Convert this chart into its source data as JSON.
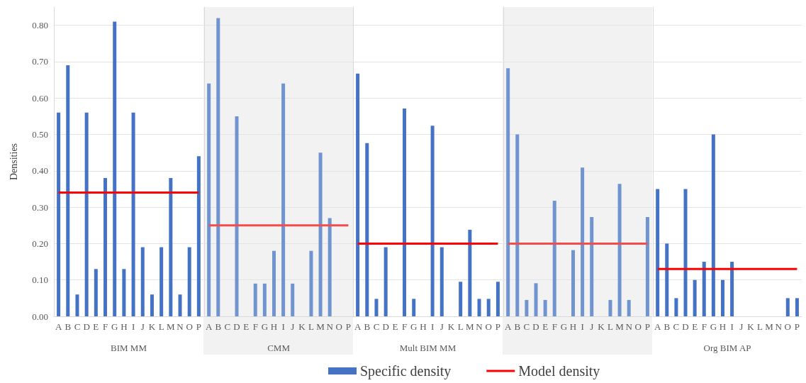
{
  "chart_data": [
    {
      "type": "bar",
      "xlabel": "BIM MM",
      "ylabel": "Densities",
      "categories": [
        "A",
        "B",
        "C",
        "D",
        "E",
        "F",
        "G",
        "H",
        "I",
        "J",
        "K",
        "L",
        "M",
        "N",
        "O",
        "P"
      ],
      "series": [
        {
          "color": "#4472c4",
          "values": [
            0.56,
            0.69,
            0.06,
            0.56,
            0.13,
            0.38,
            0.81,
            0.13,
            0.56,
            0.19,
            0.06,
            0.19,
            0.38,
            0.06,
            0.19,
            0.44
          ]
        },
        {
          "type": "line",
          "color": "#ff0000",
          "values": [
            0.34,
            0.34,
            0.34,
            0.34,
            0.34,
            0.34,
            0.34,
            0.34,
            0.34,
            0.34,
            0.34,
            0.34,
            0.34,
            0.34,
            0.34,
            0.34
          ]
        }
      ],
      "ylim": [
        0,
        0.85
      ],
      "yticks": [
        {
          "value": 0,
          "label": "0.00"
        },
        {
          "value": 0.1,
          "label": "0.10"
        },
        {
          "value": 0.2,
          "label": "0.20"
        },
        {
          "value": 0.3,
          "label": "0.30"
        },
        {
          "value": 0.4,
          "label": "0.40"
        },
        {
          "value": 0.5,
          "label": "0.50"
        },
        {
          "value": 0.6,
          "label": "0.60"
        },
        {
          "value": 0.7,
          "label": "0.70"
        },
        {
          "value": 0.8,
          "label": "0.80"
        }
      ],
      "grid": "y",
      "marker": "none",
      "line_style": "solid",
      "legend": false
    },
    {
      "type": "bar",
      "xlabel": "CMM",
      "categories": [
        "A",
        "B",
        "C",
        "D",
        "E",
        "F",
        "G",
        "H",
        "I",
        "J",
        "K",
        "L",
        "M",
        "N",
        "O",
        "P"
      ],
      "series": [
        {
          "color": "#7094d0",
          "values": [
            0.64,
            0.82,
            0,
            0.55,
            0,
            0.09,
            0.09,
            0.18,
            0.64,
            0.09,
            0,
            0.18,
            0.45,
            0.27,
            0,
            0
          ]
        },
        {
          "type": "line",
          "color": "#f24c4c",
          "values": [
            0.25,
            0.25,
            0.25,
            0.25,
            0.25,
            0.25,
            0.25,
            0.25,
            0.25,
            0.25,
            0.25,
            0.25,
            0.25,
            0.25,
            0.25,
            0.25
          ]
        }
      ],
      "ylim": [
        0,
        0.85
      ],
      "yticks": [
        0,
        0.1,
        0.2,
        0.3,
        0.4,
        0.5,
        0.6,
        0.7,
        0.8
      ],
      "tick_labels": "x",
      "grid": "y",
      "marker": "none",
      "line_style": "solid",
      "legend": false,
      "bands": [
        {
          "axis": "x",
          "from": "A",
          "to": "P",
          "color": "#f2f2f2"
        }
      ]
    },
    {
      "type": "bar",
      "xlabel": "Mult BIM MM",
      "categories": [
        "A",
        "B",
        "C",
        "D",
        "E",
        "F",
        "G",
        "H",
        "I",
        "J",
        "K",
        "L",
        "M",
        "N",
        "O",
        "P"
      ],
      "series": [
        {
          "name": "Specific density",
          "color": "#4472c4",
          "values": [
            0.667,
            0.476,
            0.048,
            0.19,
            0,
            0.571,
            0.048,
            0,
            0.524,
            0.19,
            0,
            0.095,
            0.238,
            0.048,
            0.048,
            0.095
          ]
        },
        {
          "type": "line",
          "name": "Model density",
          "color": "#ff0000",
          "values": [
            0.2,
            0.2,
            0.2,
            0.2,
            0.2,
            0.2,
            0.2,
            0.2,
            0.2,
            0.2,
            0.2,
            0.2,
            0.2,
            0.2,
            0.2,
            0.2
          ]
        }
      ],
      "ylim": [
        0,
        0.85
      ],
      "yticks": [
        0,
        0.1,
        0.2,
        0.3,
        0.4,
        0.5,
        0.6,
        0.7,
        0.8
      ],
      "tick_labels": "x",
      "grid": "y",
      "marker": "none",
      "line_style": "solid",
      "legend": "bottom"
    },
    {
      "type": "bar",
      "categories": [
        "A",
        "B",
        "C",
        "D",
        "E",
        "F",
        "G",
        "H",
        "I",
        "J",
        "K",
        "L",
        "M",
        "N",
        "O",
        "P"
      ],
      "series": [
        {
          "color": "#7094d0",
          "values": [
            0.682,
            0.5,
            0.045,
            0.091,
            0.045,
            0.318,
            0,
            0.182,
            0.409,
            0.273,
            0,
            0.045,
            0.364,
            0.045,
            0,
            0.273
          ]
        },
        {
          "type": "line",
          "color": "#f24c4c",
          "values": [
            0.2,
            0.2,
            0.2,
            0.2,
            0.2,
            0.2,
            0.2,
            0.2,
            0.2,
            0.2,
            0.2,
            0.2,
            0.2,
            0.2,
            0.2,
            0.2
          ]
        }
      ],
      "ylim": [
        0,
        0.85
      ],
      "yticks": [
        0,
        0.1,
        0.2,
        0.3,
        0.4,
        0.5,
        0.6,
        0.7,
        0.8
      ],
      "tick_labels": "x",
      "grid": "y",
      "marker": "none",
      "line_style": "solid",
      "legend": false,
      "bands": [
        {
          "axis": "x",
          "from": "A",
          "to": "P",
          "color": "#f2f2f2"
        }
      ]
    },
    {
      "type": "bar",
      "xlabel": "Org BIM AP",
      "categories": [
        "A",
        "B",
        "C",
        "D",
        "E",
        "F",
        "G",
        "H",
        "I",
        "J",
        "K",
        "L",
        "M",
        "N",
        "O",
        "P"
      ],
      "series": [
        {
          "color": "#4472c4",
          "values": [
            0.35,
            0.2,
            0.05,
            0.35,
            0.1,
            0.15,
            0.5,
            0.1,
            0.15,
            0,
            0,
            0,
            0,
            0,
            0.05,
            0.05
          ]
        },
        {
          "type": "line",
          "color": "#ff0000",
          "values": [
            0.13,
            0.13,
            0.13,
            0.13,
            0.13,
            0.13,
            0.13,
            0.13,
            0.13,
            0.13,
            0.13,
            0.13,
            0.13,
            0.13,
            0.13,
            0.13
          ]
        }
      ],
      "ylim": [
        0,
        0.85
      ],
      "yticks": [
        0,
        0.1,
        0.2,
        0.3,
        0.4,
        0.5,
        0.6,
        0.7,
        0.8
      ],
      "tick_labels": "x",
      "grid": "y",
      "marker": "none",
      "line_style": "solid",
      "legend": false
    }
  ]
}
